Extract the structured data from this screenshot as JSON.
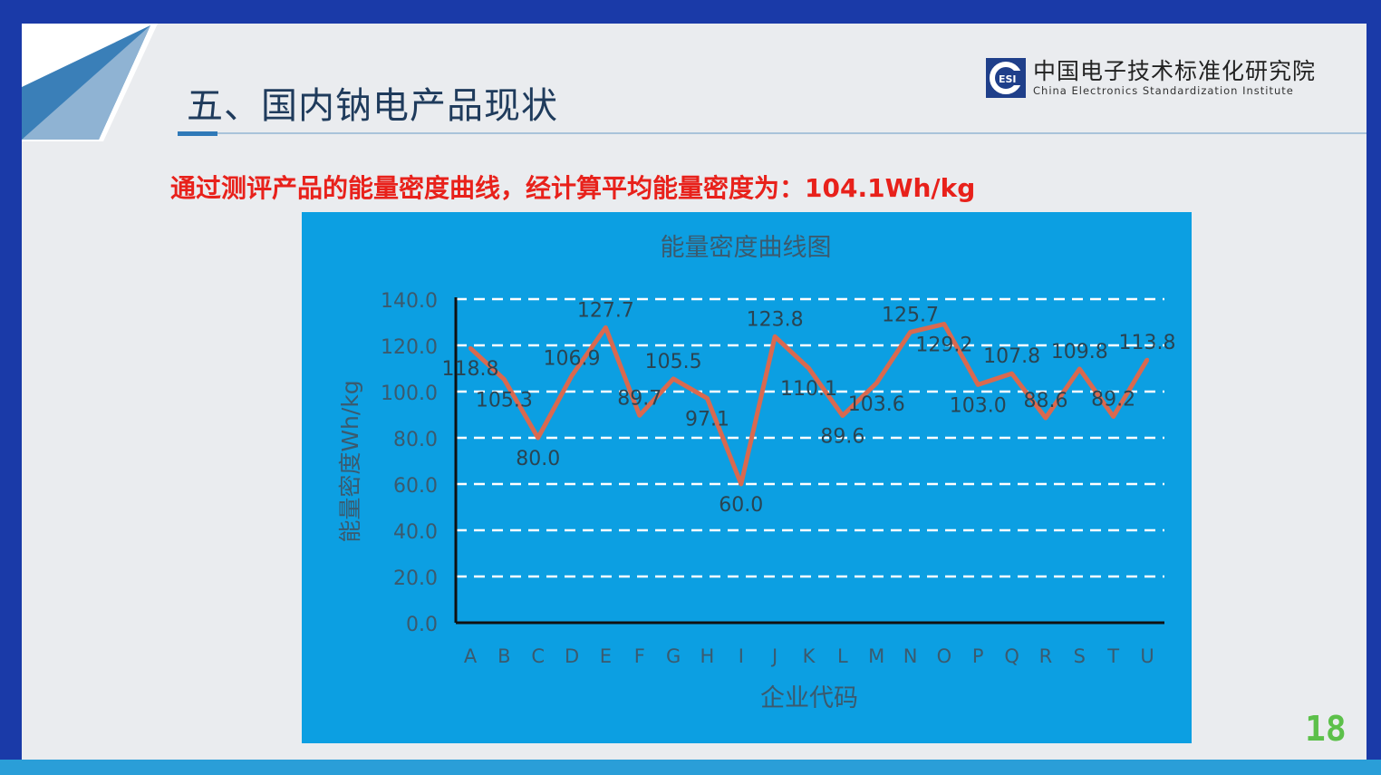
{
  "slide": {
    "title": "五、国内钠电产品现状",
    "headline": "通过测评产品的能量密度曲线，经计算平均能量密度为：104.1Wh/kg",
    "logo": {
      "cn": "中国电子技术标准化研究院",
      "en": "China Electronics Standardization Institute",
      "mark": "CESI"
    },
    "page_number": "18"
  },
  "colors": {
    "chart_bg": "#0c9fe2",
    "line": "#d9694f",
    "headline": "#e8211b",
    "grid": "#ffffff"
  },
  "chart_data": {
    "type": "line",
    "title": "能量密度曲线图",
    "xlabel": "企业代码",
    "ylabel": "能量密度Wh/kg",
    "categories": [
      "A",
      "B",
      "C",
      "D",
      "E",
      "F",
      "G",
      "H",
      "I",
      "J",
      "K",
      "L",
      "M",
      "N",
      "O",
      "P",
      "Q",
      "R",
      "S",
      "T",
      "U"
    ],
    "values": [
      118.8,
      105.3,
      80.0,
      106.9,
      127.7,
      89.7,
      105.5,
      97.1,
      60.0,
      123.8,
      110.1,
      89.6,
      103.6,
      125.7,
      129.2,
      103.0,
      107.8,
      88.6,
      109.8,
      89.2,
      113.8
    ],
    "data_labels": [
      "118.8",
      "105.3",
      "80.0",
      "106.9",
      "127.7",
      "89.7",
      "105.5",
      "97.1",
      "60.0",
      "123.8",
      "110.1",
      "89.6",
      "103.6",
      "125.7",
      "129.2",
      "103.0",
      "107.8",
      "88.6",
      "109.8",
      "89.2",
      "113.8"
    ],
    "yticks": [
      "0.0",
      "20.0",
      "40.0",
      "60.0",
      "80.0",
      "100.0",
      "120.0",
      "140.0"
    ],
    "ylim": [
      0,
      140
    ],
    "grid": "dashed horizontal",
    "legend": "none"
  }
}
